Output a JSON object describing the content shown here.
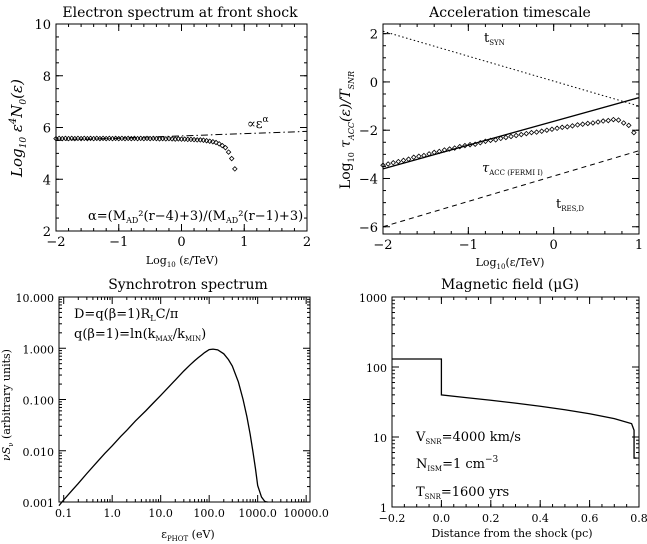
{
  "chart_data": [
    {
      "type": "scatter",
      "title": "Electron spectrum at front shock",
      "xlabel": "Log₁₀ (ε/TeV)",
      "ylabel": "Log₁₀ ε⁴N₀(ε)",
      "xlim": [
        -2,
        2
      ],
      "ylim": [
        2,
        10
      ],
      "xticks": [
        "−2",
        "−1",
        "0",
        "1",
        "2"
      ],
      "yticks": [
        "2",
        "4",
        "6",
        "8",
        "10"
      ],
      "series": [
        {
          "x": [
            -2.0,
            -1.95,
            -1.9,
            -1.85,
            -1.8,
            -1.75,
            -1.7,
            -1.65,
            -1.6,
            -1.55,
            -1.5,
            -1.45,
            -1.4,
            -1.35,
            -1.3,
            -1.25,
            -1.2,
            -1.15,
            -1.1,
            -1.05,
            -1.0,
            -0.95,
            -0.9,
            -0.85,
            -0.8,
            -0.75,
            -0.7,
            -0.65,
            -0.6,
            -0.55,
            -0.5,
            -0.45,
            -0.4,
            -0.35,
            -0.3,
            -0.25,
            -0.2,
            -0.15,
            -0.1,
            -0.05,
            0.0,
            0.05,
            0.1,
            0.15,
            0.2,
            0.25,
            0.3,
            0.35,
            0.4,
            0.45,
            0.5,
            0.55,
            0.6,
            0.65,
            0.7,
            0.75,
            0.8,
            0.85
          ],
          "y": [
            5.57,
            5.58,
            5.57,
            5.58,
            5.57,
            5.58,
            5.57,
            5.58,
            5.57,
            5.58,
            5.57,
            5.58,
            5.57,
            5.58,
            5.57,
            5.58,
            5.57,
            5.58,
            5.57,
            5.58,
            5.57,
            5.58,
            5.57,
            5.58,
            5.57,
            5.58,
            5.57,
            5.58,
            5.57,
            5.58,
            5.57,
            5.58,
            5.57,
            5.56,
            5.57,
            5.56,
            5.57,
            5.56,
            5.55,
            5.56,
            5.55,
            5.55,
            5.54,
            5.54,
            5.53,
            5.52,
            5.52,
            5.51,
            5.49,
            5.47,
            5.45,
            5.42,
            5.37,
            5.3,
            5.22,
            5.05,
            4.8,
            4.4
          ]
        },
        {
          "x": [
            -2,
            2
          ],
          "y": [
            5.5,
            5.85
          ]
        }
      ],
      "annotations": [
        "∝εᵅ",
        "α=(Mₐᴅ²(r−4)+3)/(Mₐᴅ²(r−1)+3)"
      ]
    },
    {
      "type": "scatter",
      "title": "Acceleration timescale",
      "xlabel": "Log₁₀(ε/TeV)",
      "ylabel": "Log₁₀ τₐᴄᴄ(ε)/Tₛₙᵣ",
      "xlim": [
        -2,
        1
      ],
      "ylim": [
        -6.3,
        2.4
      ],
      "xticks": [
        "−2",
        "−1",
        "0",
        "1"
      ],
      "yticks": [
        "−6",
        "−4",
        "−2",
        "0",
        "2"
      ],
      "series": [
        {
          "x": [
            -2.0,
            -1.94,
            -1.88,
            -1.82,
            -1.76,
            -1.7,
            -1.64,
            -1.58,
            -1.52,
            -1.46,
            -1.4,
            -1.34,
            -1.28,
            -1.22,
            -1.16,
            -1.1,
            -1.04,
            -0.98,
            -0.92,
            -0.86,
            -0.8,
            -0.74,
            -0.68,
            -0.62,
            -0.56,
            -0.5,
            -0.44,
            -0.38,
            -0.32,
            -0.26,
            -0.2,
            -0.14,
            -0.08,
            -0.02,
            0.04,
            0.1,
            0.16,
            0.22,
            0.28,
            0.34,
            0.4,
            0.46,
            0.52,
            0.58,
            0.64,
            0.7,
            0.76,
            0.82,
            0.88,
            0.94
          ],
          "y": [
            -3.45,
            -3.4,
            -3.35,
            -3.3,
            -3.25,
            -3.2,
            -3.12,
            -3.08,
            -3.05,
            -2.98,
            -2.92,
            -2.88,
            -2.82,
            -2.78,
            -2.74,
            -2.68,
            -2.64,
            -2.6,
            -2.58,
            -2.52,
            -2.46,
            -2.42,
            -2.4,
            -2.34,
            -2.3,
            -2.26,
            -2.22,
            -2.18,
            -2.14,
            -2.1,
            -2.08,
            -2.04,
            -2.0,
            -1.96,
            -1.92,
            -1.88,
            -1.86,
            -1.82,
            -1.78,
            -1.75,
            -1.72,
            -1.7,
            -1.66,
            -1.62,
            -1.6,
            -1.56,
            -1.58,
            -1.7,
            -1.8,
            -2.1
          ]
        },
        {
          "name": "τₐᴄᴄ (FERMI I)",
          "x": [
            -2,
            1
          ],
          "y": [
            -3.6,
            -0.65
          ]
        },
        {
          "name": "tₛᵧₙ",
          "x": [
            -2,
            1
          ],
          "y": [
            2.1,
            -1.0
          ]
        },
        {
          "name": "tᵣₑₛ,ᴅ",
          "x": [
            -2,
            1
          ],
          "y": [
            -6.0,
            -2.85
          ]
        }
      ],
      "labels": {
        "syn": "t",
        "syn_sub": "SYN",
        "fermi": "τ",
        "fermi_sub": "ACC (FERMI I)",
        "res": "t",
        "res_sub": "RES,D"
      }
    },
    {
      "type": "line",
      "title": "Synchrotron spectrum",
      "xlabel": "ε",
      "xlabel_sub": "PHOT",
      "xlabel_unit": " (eV)",
      "ylabel": "νSν (arbitrary units)",
      "xscale": "log",
      "yscale": "log",
      "xlim": [
        0.08,
        12000
      ],
      "ylim": [
        0.001,
        10
      ],
      "xticks": [
        "0.1",
        "1.0",
        "10.0",
        "100.0",
        "1000.0",
        "10000.0"
      ],
      "yticks": [
        "0.001",
        "0.010",
        "0.100",
        "1.000",
        "10.000"
      ],
      "series": [
        {
          "x": [
            0.08,
            0.1,
            0.15,
            0.2,
            0.3,
            0.5,
            0.7,
            1,
            1.5,
            2,
            3,
            5,
            7,
            10,
            15,
            20,
            30,
            40,
            50,
            60,
            70,
            80,
            90,
            100,
            120,
            150,
            200,
            250,
            300,
            400,
            500,
            600,
            700,
            800,
            900,
            1000,
            1200,
            1400,
            1500,
            1600
          ],
          "y": [
            0.00085,
            0.0011,
            0.0017,
            0.0023,
            0.0036,
            0.0062,
            0.0088,
            0.0125,
            0.019,
            0.025,
            0.038,
            0.061,
            0.085,
            0.12,
            0.18,
            0.24,
            0.36,
            0.47,
            0.57,
            0.66,
            0.74,
            0.82,
            0.88,
            0.94,
            0.96,
            0.93,
            0.78,
            0.6,
            0.45,
            0.22,
            0.1,
            0.046,
            0.021,
            0.0095,
            0.0045,
            0.0021,
            0.00125,
            0.00103,
            0.00101,
            0.001
          ]
        }
      ],
      "annotations": [
        "D=q(β=1)RₗC/π",
        "q(β=1)=ln(kₘₐₓ/kₘᵢₙ)"
      ],
      "annot_parts": {
        "d_line": "D=q(β=1)R",
        "d_sub": "L",
        "d_tail": "C/π",
        "q_line": "q(β=1)=ln(k",
        "q_sub1": "MAX",
        "q_mid": "/k",
        "q_sub2": "MIN",
        "q_tail": ")"
      }
    },
    {
      "type": "line",
      "title": "Magnetic field (μG)",
      "xlabel": "Distance from the shock (pc)",
      "yscale": "log",
      "xlim": [
        -0.2,
        0.8
      ],
      "ylim": [
        1,
        1000
      ],
      "xticks": [
        "−0.2",
        "0.0",
        "0.2",
        "0.4",
        "0.6",
        "0.8"
      ],
      "yticks": [
        "1",
        "10",
        "100",
        "1000"
      ],
      "series": [
        {
          "x": [
            -0.2,
            0.0,
            0.0,
            0.1,
            0.2,
            0.3,
            0.4,
            0.5,
            0.6,
            0.7,
            0.77,
            0.78,
            0.78,
            0.79
          ],
          "y": [
            130,
            130,
            40,
            36.5,
            33.5,
            30.5,
            27.5,
            24.5,
            21.5,
            18.3,
            15.5,
            12.5,
            5,
            5
          ]
        }
      ],
      "annotations": {
        "vsnr": "V",
        "vsnr_sub": "SNR",
        "vsnr_val": "=4000 km/s",
        "nism": "N",
        "nism_sub": "ISM",
        "nism_val": "=1 cm",
        "nism_exp": "−3",
        "tsnr": "T",
        "tsnr_sub": "SNR",
        "tsnr_val": "=1600 yrs"
      }
    }
  ],
  "panels": {
    "p1": {
      "title": "Electron spectrum at front shock",
      "ylabel_main": "Log",
      "ylabel_sub": "10",
      "ylabel_tail": " ε",
      "ylabel_sup": "4",
      "ylabel_N": "N",
      "ylabel_Nsub": "0",
      "ylabel_end": "(ε)",
      "xlabel_main": "Log",
      "xlabel_sub": "10",
      "xlabel_tail": " (ε/TeV)",
      "annot_prop": "∝ε",
      "annot_prop_sup": "α",
      "annot_alpha": "α=(M",
      "annot_ad1": "AD",
      "annot_mid": "²(r−4)+3)/(M",
      "annot_ad2": "AD",
      "annot_end": "²(r−1)+3)"
    },
    "p2": {
      "title": "Acceleration timescale",
      "ylabel_main": "Log",
      "ylabel_sub": "10",
      "ylabel_tau": " τ",
      "ylabel_acc": "ACC",
      "ylabel_mid": "(ε)/T",
      "ylabel_snr": "SNR",
      "xlabel_main": "Log",
      "xlabel_sub": "10",
      "xlabel_tail": "(ε/TeV)"
    },
    "p3": {
      "title": "Synchrotron spectrum",
      "ylabel": "νS",
      "ylabel_sub": "ν",
      "ylabel_tail": " (arbitrary units)"
    },
    "p4": {
      "title": "Magnetic field (μG)",
      "xlabel": "Distance from the shock (pc)"
    }
  }
}
